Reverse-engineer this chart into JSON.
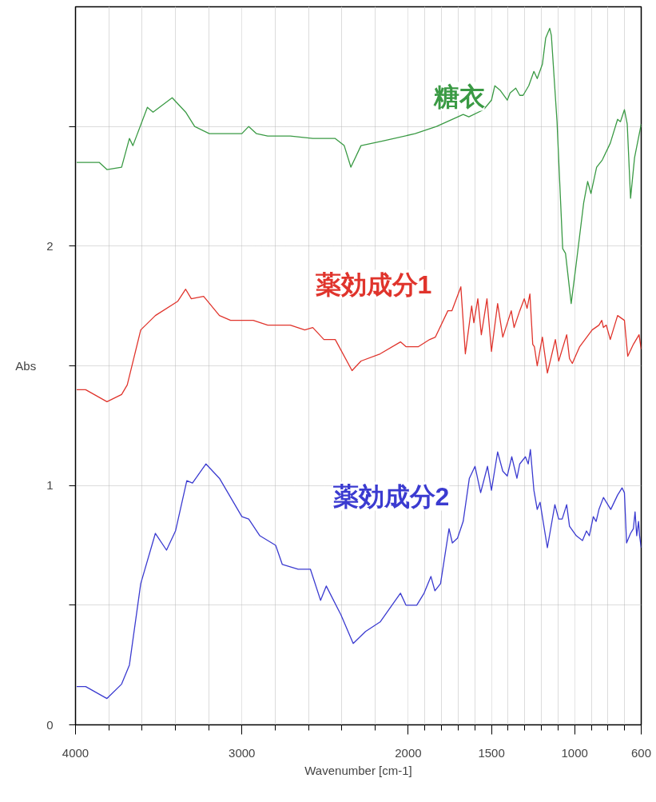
{
  "chart_data": {
    "type": "line",
    "xlabel": "Wavenumber [cm-1]",
    "ylabel": "Abs",
    "xlim": [
      4000,
      600
    ],
    "ylim": [
      0,
      3.0
    ],
    "xticks": [
      4000,
      {
        "value": 3800,
        "label": null
      },
      {
        "value": 3600,
        "label": null
      },
      {
        "value": 3400,
        "label": null
      },
      {
        "value": 3200,
        "label": null
      },
      3000,
      {
        "value": 2800,
        "label": null
      },
      {
        "value": 2600,
        "label": null
      },
      {
        "value": 2400,
        "label": null
      },
      {
        "value": 2200,
        "label": null
      },
      2000,
      {
        "value": 1900,
        "label": null
      },
      {
        "value": 1800,
        "label": null
      },
      {
        "value": 1700,
        "label": null
      },
      {
        "value": 1600,
        "label": null
      },
      1500,
      {
        "value": 1400,
        "label": null
      },
      {
        "value": 1300,
        "label": null
      },
      {
        "value": 1200,
        "label": null
      },
      {
        "value": 1100,
        "label": null
      },
      1000,
      {
        "value": 900,
        "label": null
      },
      {
        "value": 800,
        "label": null
      },
      {
        "value": 700,
        "label": null
      },
      600
    ],
    "yticks": [
      0,
      {
        "value": 0.5,
        "label": null
      },
      1,
      {
        "value": 1.5,
        "label": null
      },
      2,
      {
        "value": 2.5,
        "label": null
      }
    ],
    "grid": true,
    "legend": false,
    "marker": "none",
    "line_style": "solid",
    "series": [
      {
        "name": "糖衣",
        "color": "#3a9a44",
        "x": [
          3993,
          3858,
          3811,
          3723,
          3676,
          3655,
          3568,
          3534,
          3419,
          3338,
          3284,
          3196,
          3000,
          2959,
          2912,
          2845,
          2709,
          2574,
          2439,
          2385,
          2345,
          2284,
          2149,
          1959,
          1830,
          1670,
          1636,
          1548,
          1500,
          1480,
          1446,
          1405,
          1388,
          1354,
          1330,
          1310,
          1276,
          1245,
          1225,
          1194,
          1174,
          1150,
          1140,
          1106,
          1072,
          1055,
          1021,
          990,
          946,
          922,
          902,
          868,
          834,
          786,
          742,
          725,
          701,
          684,
          664,
          640,
          600
        ],
        "values": [
          2.35,
          2.35,
          2.32,
          2.33,
          2.45,
          2.42,
          2.58,
          2.56,
          2.62,
          2.56,
          2.5,
          2.47,
          2.47,
          2.5,
          2.47,
          2.46,
          2.46,
          2.45,
          2.45,
          2.42,
          2.33,
          2.42,
          2.44,
          2.47,
          2.5,
          2.55,
          2.54,
          2.57,
          2.61,
          2.67,
          2.65,
          2.61,
          2.64,
          2.66,
          2.63,
          2.63,
          2.67,
          2.73,
          2.7,
          2.76,
          2.87,
          2.91,
          2.88,
          2.52,
          1.99,
          1.97,
          1.76,
          1.93,
          2.18,
          2.27,
          2.22,
          2.33,
          2.36,
          2.43,
          2.53,
          2.52,
          2.57,
          2.51,
          2.2,
          2.37,
          2.51
        ]
      },
      {
        "name": "薬効成分1",
        "color": "#e0342c",
        "x": [
          3993,
          3939,
          3811,
          3723,
          3689,
          3608,
          3520,
          3385,
          3338,
          3304,
          3230,
          3135,
          3068,
          2932,
          2845,
          2709,
          2622,
          2574,
          2507,
          2439,
          2338,
          2284,
          2169,
          2047,
          2014,
          1939,
          1871,
          1837,
          1762,
          1738,
          1684,
          1657,
          1619,
          1606,
          1582,
          1561,
          1527,
          1500,
          1463,
          1432,
          1381,
          1364,
          1330,
          1303,
          1286,
          1269,
          1252,
          1242,
          1225,
          1194,
          1164,
          1116,
          1096,
          1048,
          1031,
          1014,
          970,
          895,
          854,
          837,
          827,
          810,
          786,
          742,
          701,
          681,
          647,
          613,
          600
        ],
        "values": [
          1.4,
          1.4,
          1.35,
          1.38,
          1.42,
          1.65,
          1.71,
          1.77,
          1.82,
          1.78,
          1.79,
          1.71,
          1.69,
          1.69,
          1.67,
          1.67,
          1.65,
          1.66,
          1.61,
          1.61,
          1.48,
          1.52,
          1.55,
          1.6,
          1.58,
          1.58,
          1.61,
          1.62,
          1.73,
          1.73,
          1.83,
          1.55,
          1.75,
          1.68,
          1.78,
          1.63,
          1.78,
          1.56,
          1.76,
          1.62,
          1.73,
          1.66,
          1.73,
          1.78,
          1.74,
          1.8,
          1.59,
          1.58,
          1.5,
          1.62,
          1.47,
          1.61,
          1.52,
          1.63,
          1.53,
          1.51,
          1.58,
          1.65,
          1.67,
          1.69,
          1.66,
          1.67,
          1.61,
          1.71,
          1.69,
          1.54,
          1.59,
          1.63,
          1.57
        ]
      },
      {
        "name": "薬効成分2",
        "color": "#3b3bd0",
        "x": [
          3993,
          3939,
          3811,
          3723,
          3676,
          3608,
          3520,
          3453,
          3399,
          3331,
          3297,
          3216,
          3135,
          3000,
          2959,
          2892,
          2797,
          2757,
          2662,
          2588,
          2527,
          2493,
          2405,
          2331,
          2257,
          2169,
          2047,
          2014,
          1949,
          1905,
          1864,
          1840,
          1806,
          1755,
          1735,
          1704,
          1670,
          1633,
          1599,
          1565,
          1524,
          1500,
          1463,
          1432,
          1405,
          1378,
          1347,
          1330,
          1296,
          1279,
          1266,
          1245,
          1225,
          1208,
          1164,
          1119,
          1096,
          1075,
          1048,
          1031,
          990,
          953,
          929,
          912,
          888,
          871,
          854,
          827,
          783,
          742,
          715,
          701,
          688,
          664,
          647,
          637,
          627,
          616,
          610,
          600
        ],
        "values": [
          0.16,
          0.16,
          0.11,
          0.17,
          0.25,
          0.59,
          0.8,
          0.73,
          0.81,
          1.02,
          1.01,
          1.09,
          1.03,
          0.87,
          0.86,
          0.79,
          0.75,
          0.67,
          0.65,
          0.65,
          0.52,
          0.58,
          0.46,
          0.34,
          0.39,
          0.43,
          0.55,
          0.5,
          0.5,
          0.55,
          0.62,
          0.56,
          0.59,
          0.82,
          0.76,
          0.78,
          0.85,
          1.03,
          1.08,
          0.97,
          1.08,
          0.98,
          1.14,
          1.06,
          1.04,
          1.12,
          1.03,
          1.09,
          1.12,
          1.09,
          1.15,
          0.98,
          0.9,
          0.93,
          0.74,
          0.92,
          0.86,
          0.86,
          0.92,
          0.83,
          0.79,
          0.77,
          0.81,
          0.79,
          0.87,
          0.85,
          0.9,
          0.95,
          0.9,
          0.96,
          0.99,
          0.97,
          0.76,
          0.8,
          0.82,
          0.89,
          0.79,
          0.85,
          0.79,
          0.74
        ]
      }
    ]
  }
}
